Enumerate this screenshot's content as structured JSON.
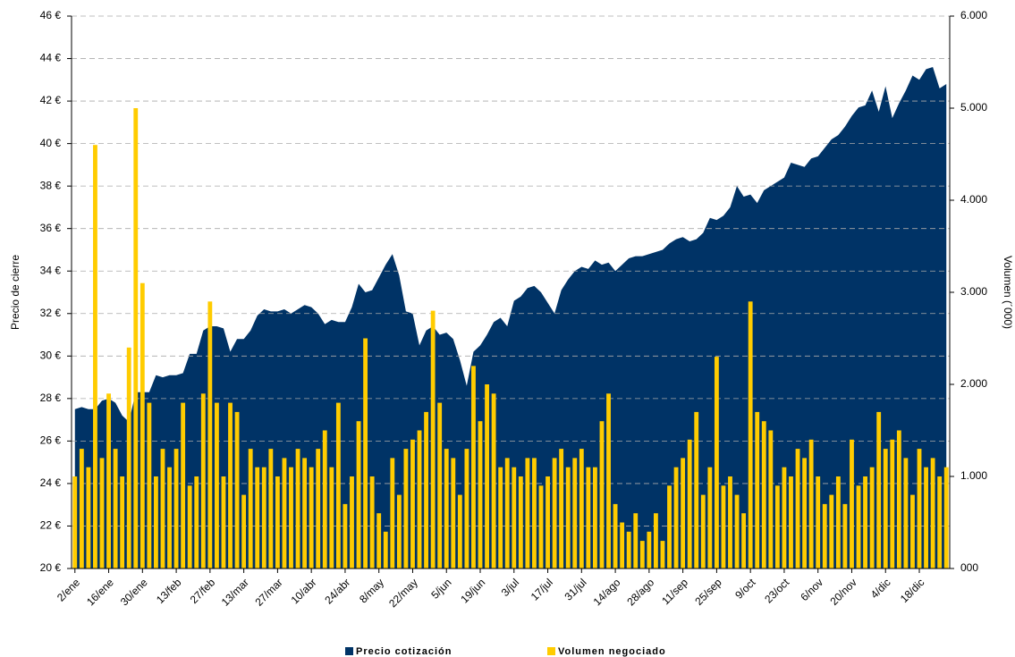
{
  "chart_data": {
    "type": "bar-area",
    "y_label": "Precio de cierre",
    "y2_label": "Volumen (´000)",
    "categories": [
      "2/ene",
      null,
      null,
      null,
      null,
      "16/ene",
      null,
      null,
      null,
      null,
      "30/ene",
      null,
      null,
      null,
      null,
      "13/feb",
      null,
      null,
      null,
      null,
      "27/feb",
      null,
      null,
      null,
      null,
      "13/mar",
      null,
      null,
      null,
      null,
      "27/mar",
      null,
      null,
      null,
      null,
      "10/abr",
      null,
      null,
      null,
      null,
      "24/abr",
      null,
      null,
      null,
      null,
      "8/may",
      null,
      null,
      null,
      null,
      "22/may",
      null,
      null,
      null,
      null,
      "5/jun",
      null,
      null,
      null,
      null,
      "19/jun",
      null,
      null,
      null,
      null,
      "3/jul",
      null,
      null,
      null,
      null,
      "17/jul",
      null,
      null,
      null,
      null,
      "31/jul",
      null,
      null,
      null,
      null,
      "14/ago",
      null,
      null,
      null,
      null,
      "28/ago",
      null,
      null,
      null,
      null,
      "11/sep",
      null,
      null,
      null,
      null,
      "25/sep",
      null,
      null,
      null,
      null,
      "9/oct",
      null,
      null,
      null,
      null,
      "23/oct",
      null,
      null,
      null,
      null,
      "6/nov",
      null,
      null,
      null,
      null,
      "20/nov",
      null,
      null,
      null,
      null,
      "4/dic",
      null,
      null,
      null,
      null,
      "18/dic",
      null,
      null,
      null,
      null
    ],
    "series": [
      {
        "name": "Precio cotización",
        "color": "#003366",
        "kind": "area",
        "values": [
          27.5,
          27.6,
          27.5,
          27.5,
          27.9,
          28.0,
          27.8,
          27.2,
          26.9,
          28.3,
          28.3,
          28.3,
          29.1,
          29.0,
          29.1,
          29.1,
          29.2,
          30.1,
          30.1,
          31.2,
          31.4,
          31.4,
          31.3,
          30.2,
          30.8,
          30.8,
          31.2,
          31.9,
          32.2,
          32.1,
          32.1,
          32.2,
          32.0,
          32.2,
          32.4,
          32.3,
          32.0,
          31.5,
          31.7,
          31.6,
          31.6,
          32.3,
          33.4,
          33.0,
          33.1,
          33.7,
          34.3,
          34.8,
          33.8,
          32.1,
          32.0,
          30.5,
          31.2,
          31.4,
          31.0,
          31.1,
          30.8,
          29.8,
          28.6,
          30.2,
          30.5,
          31.0,
          31.6,
          31.8,
          31.4,
          32.6,
          32.8,
          33.2,
          33.3,
          33.0,
          32.5,
          32.0,
          33.1,
          33.6,
          34.0,
          34.2,
          34.1,
          34.5,
          34.3,
          34.4,
          34.0,
          34.3,
          34.6,
          34.7,
          34.7,
          34.8,
          34.9,
          35.0,
          35.3,
          35.5,
          35.6,
          35.4,
          35.5,
          35.8,
          36.5,
          36.4,
          36.6,
          37.0,
          38.0,
          37.5,
          37.6,
          37.2,
          37.8,
          38.0,
          38.2,
          38.4,
          39.1,
          39.0,
          38.9,
          39.3,
          39.4,
          39.8,
          40.2,
          40.4,
          40.8,
          41.3,
          41.7,
          41.8,
          42.5,
          41.5,
          42.7,
          41.2,
          41.9,
          42.5,
          43.2,
          43.0,
          43.5,
          43.6,
          42.6,
          42.8
        ]
      },
      {
        "name": "Volumen negociado",
        "color": "#ffcc00",
        "kind": "bar",
        "axis": "y2",
        "values": [
          1000,
          1300,
          1100,
          4600,
          1200,
          1900,
          1300,
          1000,
          2400,
          5000,
          3100,
          1800,
          1000,
          1300,
          1100,
          1300,
          1800,
          900,
          1000,
          1900,
          2900,
          1800,
          1000,
          1800,
          1700,
          800,
          1300,
          1100,
          1100,
          1300,
          1000,
          1200,
          1100,
          1300,
          1200,
          1100,
          1300,
          1500,
          1100,
          1800,
          700,
          1000,
          1600,
          2500,
          1000,
          600,
          400,
          1200,
          800,
          1300,
          1400,
          1500,
          1700,
          2800,
          1800,
          1300,
          1200,
          800,
          1300,
          2200,
          1600,
          2000,
          1900,
          1100,
          1200,
          1100,
          1000,
          1200,
          1200,
          900,
          1000,
          1200,
          1300,
          1100,
          1200,
          1300,
          1100,
          1100,
          1600,
          1900,
          700,
          500,
          400,
          600,
          300,
          400,
          600,
          300,
          900,
          1100,
          1200,
          1400,
          1700,
          800,
          1100,
          2300,
          900,
          1000,
          800,
          600,
          2900,
          1700,
          1600,
          1500,
          900,
          1100,
          1000,
          1300,
          1200,
          1400,
          1000,
          700,
          800,
          1000,
          700,
          1400,
          900,
          1000,
          1100,
          1700,
          1300,
          1400,
          1500,
          1200,
          800,
          1300,
          1100,
          1200,
          1000,
          1100
        ]
      }
    ],
    "ylim": [
      20,
      46
    ],
    "yticks": [
      {
        "value": 20,
        "label": "20 €"
      },
      {
        "value": 22,
        "label": "22 €"
      },
      {
        "value": 24,
        "label": "24 €"
      },
      {
        "value": 26,
        "label": "26 €"
      },
      {
        "value": 28,
        "label": "28 €"
      },
      {
        "value": 30,
        "label": "30 €"
      },
      {
        "value": 32,
        "label": "32 €"
      },
      {
        "value": 34,
        "label": "34 €"
      },
      {
        "value": 36,
        "label": "36 €"
      },
      {
        "value": 38,
        "label": "38 €"
      },
      {
        "value": 40,
        "label": "40 €"
      },
      {
        "value": 42,
        "label": "42 €"
      },
      {
        "value": 44,
        "label": "44 €"
      },
      {
        "value": 46,
        "label": "46 €"
      }
    ],
    "y2lim": [
      0,
      6000
    ],
    "y2ticks": [
      {
        "value": 0,
        "label": "000"
      },
      {
        "value": 1000,
        "label": "1.000"
      },
      {
        "value": 2000,
        "label": "2.000"
      },
      {
        "value": 3000,
        "label": "3.000"
      },
      {
        "value": 4000,
        "label": "4.000"
      },
      {
        "value": 5000,
        "label": "5.000"
      },
      {
        "value": 6000,
        "label": "6.000"
      }
    ],
    "grid": true
  }
}
